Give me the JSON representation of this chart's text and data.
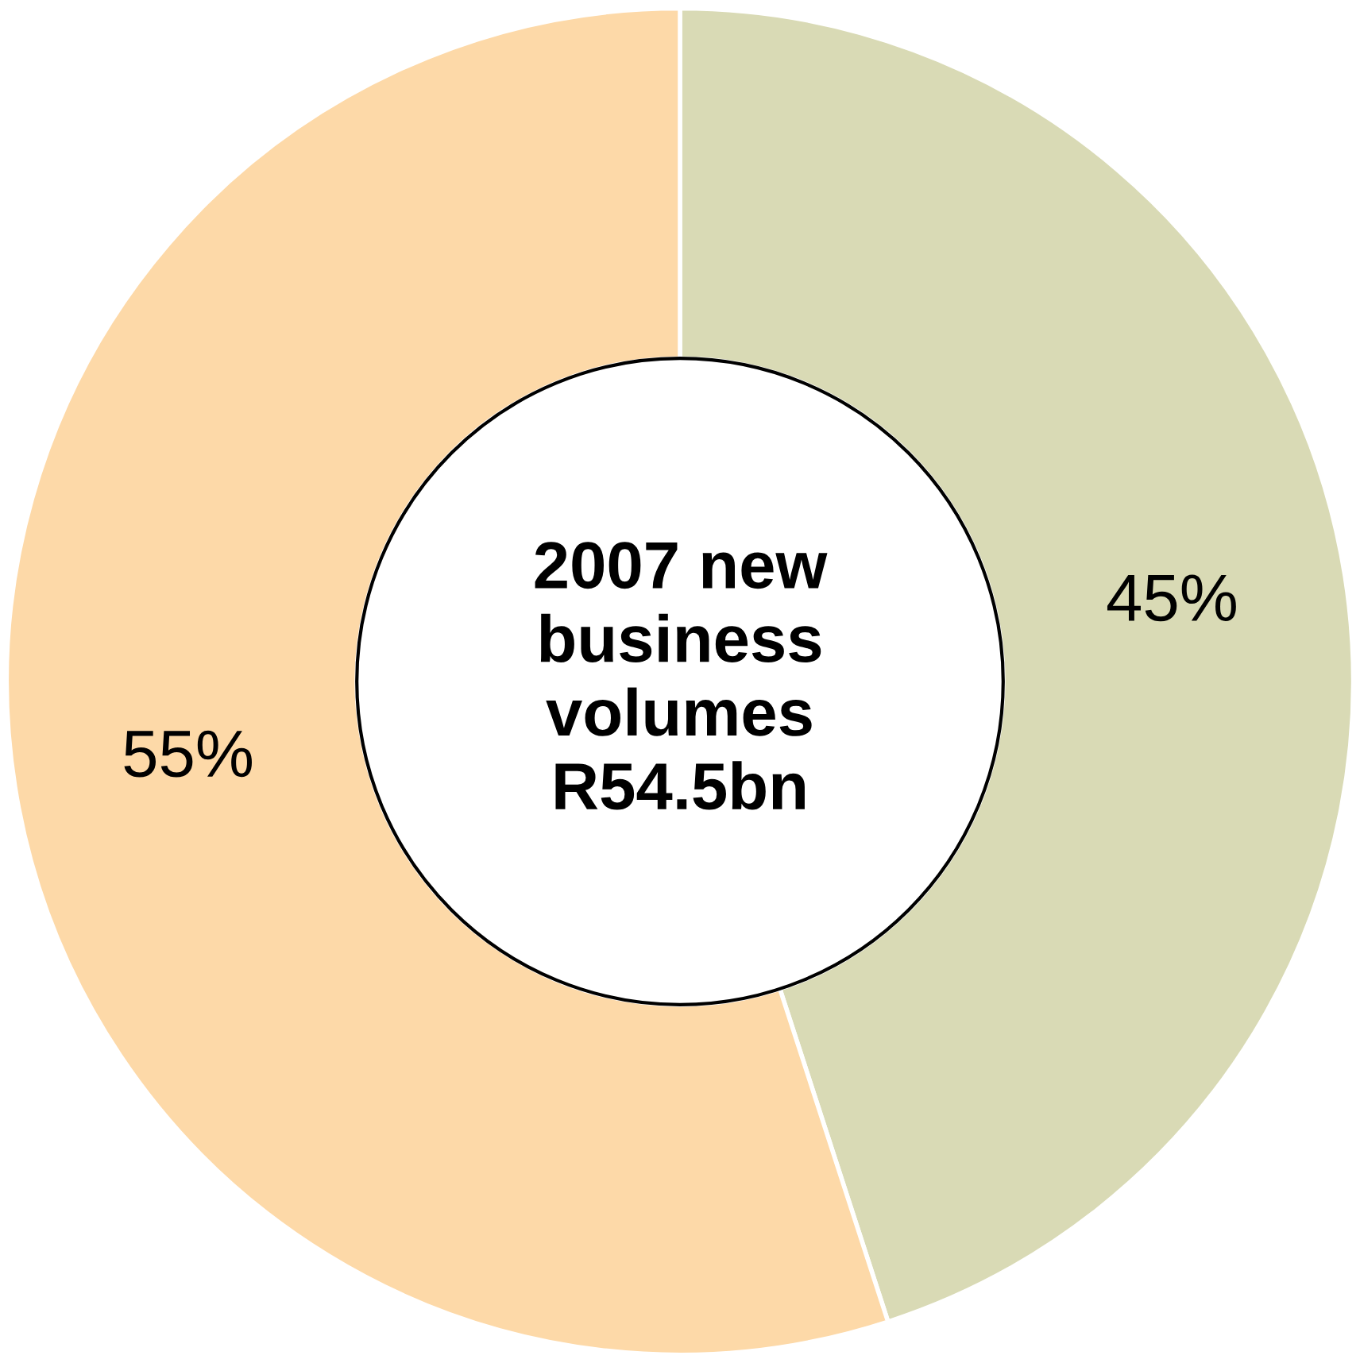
{
  "chart_data": {
    "type": "donut",
    "title": "2007 new\nbusiness\nvolumes\nR54.5bn",
    "categories": [
      null,
      null
    ],
    "values": [
      45,
      55
    ],
    "colors": [
      "#d9dab5",
      "#fdd9a8"
    ],
    "value_labels": [
      "45%",
      "55%"
    ]
  }
}
